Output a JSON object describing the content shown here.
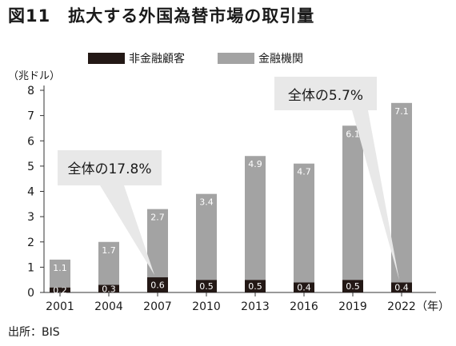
{
  "title": "図11　拡大する外国為替市場の取引量",
  "source": "出所：BIS",
  "chart_data": {
    "type": "bar",
    "stacked": true,
    "categories": [
      "2001",
      "2004",
      "2007",
      "2010",
      "2013",
      "2016",
      "2019",
      "2022"
    ],
    "series": [
      {
        "name": "非金融顧客",
        "values": [
          0.2,
          0.3,
          0.6,
          0.5,
          0.5,
          0.4,
          0.5,
          0.4
        ],
        "labels": [
          "0.2",
          "0.3",
          "0.6",
          "0.5",
          "0.5",
          "0.4",
          "0.5",
          "0.4"
        ],
        "color": "#231815"
      },
      {
        "name": "金融機関",
        "values": [
          1.1,
          1.7,
          2.7,
          3.4,
          4.9,
          4.7,
          6.1,
          7.1
        ],
        "labels": [
          "1.1",
          "1.7",
          "2.7",
          "3.4",
          "4.9",
          "4.7",
          "6.1",
          "7.1"
        ],
        "color": "#a3a3a3"
      }
    ],
    "ylim": [
      0,
      8
    ],
    "yticks": [
      0,
      1,
      2,
      3,
      4,
      5,
      6,
      7,
      8
    ],
    "y_unit": "（兆ドル）",
    "x_unit": "（年）",
    "grid": false,
    "legend_position": "top",
    "annotations": [
      {
        "text": "全体の17.8%",
        "category": "2007"
      },
      {
        "text": "全体の5.7%",
        "category": "2022"
      }
    ]
  }
}
